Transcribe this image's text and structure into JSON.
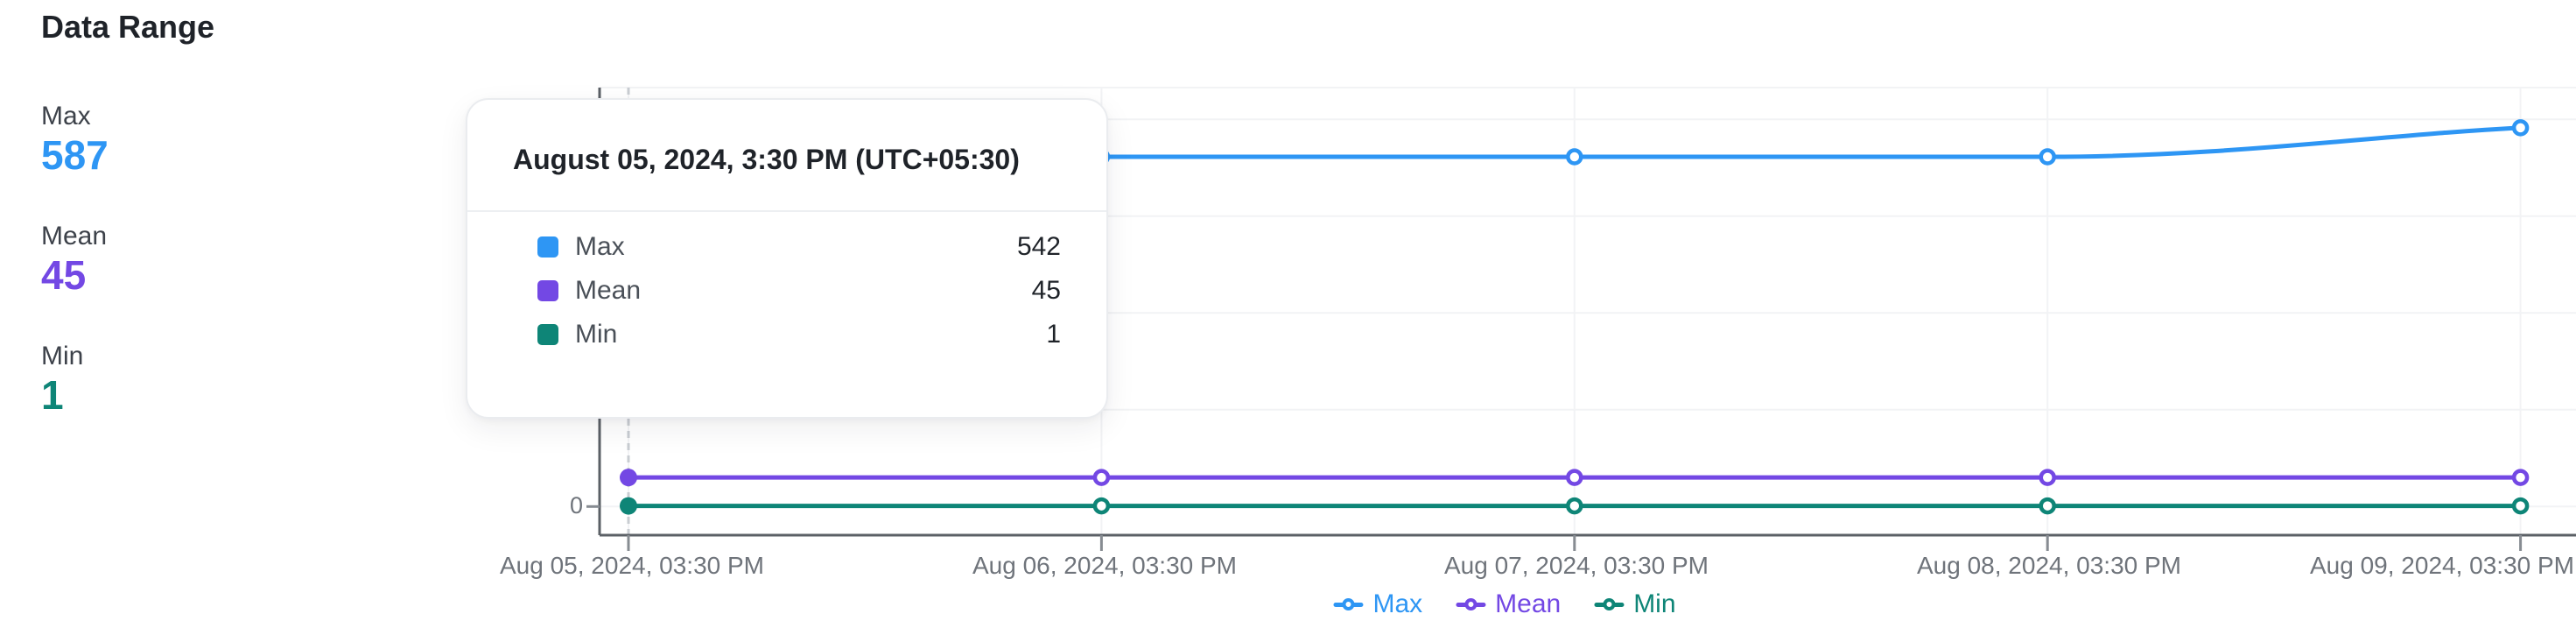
{
  "stats_panel": {
    "title": "Data Range",
    "stats": [
      {
        "label": "Max",
        "value": "587",
        "color": "#2e96f4"
      },
      {
        "label": "Mean",
        "value": "45",
        "color": "#7348e4"
      },
      {
        "label": "Min",
        "value": "1",
        "color": "#0e8577"
      }
    ]
  },
  "tooltip": {
    "title": "August 05, 2024, 3:30 PM (UTC+05:30)",
    "rows": [
      {
        "label": "Max",
        "value": "542",
        "color": "#2e96f4"
      },
      {
        "label": "Mean",
        "value": "45",
        "color": "#7348e4"
      },
      {
        "label": "Min",
        "value": "1",
        "color": "#0e8577"
      }
    ]
  },
  "legend": {
    "items": [
      {
        "label": "Max",
        "color": "#2e96f4"
      },
      {
        "label": "Mean",
        "color": "#7348e4"
      },
      {
        "label": "Min",
        "color": "#0e8577"
      }
    ]
  },
  "chart_data": {
    "type": "line",
    "title": "Data Range",
    "x_labels": [
      "Aug 05, 2024, 03:30 PM",
      "Aug 06, 2024, 03:30 PM",
      "Aug 07, 2024, 03:30 PM",
      "Aug 08, 2024, 03:30 PM",
      "Aug 09, 2024, 03:30 PM"
    ],
    "series": [
      {
        "name": "Max",
        "color": "#2e96f4",
        "values": [
          542,
          542,
          542,
          542,
          587
        ]
      },
      {
        "name": "Mean",
        "color": "#7348e4",
        "values": [
          45,
          45,
          45,
          45,
          45
        ]
      },
      {
        "name": "Min",
        "color": "#0e8577",
        "values": [
          1,
          1,
          1,
          1,
          1
        ]
      }
    ],
    "y_axis": {
      "visible_tick_labels": [
        "0"
      ],
      "gridline_values": [
        0,
        150,
        300,
        450,
        600
      ],
      "top_boundary_value": 650
    },
    "hovered_point_index": 0,
    "legend_position": "bottom",
    "grid": true,
    "colors": {
      "axis": "#5b6066",
      "tick": "#878c92",
      "gridline": "#f2f3f5",
      "hover_line": "#c9cdd2",
      "tick_label": "#6f747b"
    }
  }
}
